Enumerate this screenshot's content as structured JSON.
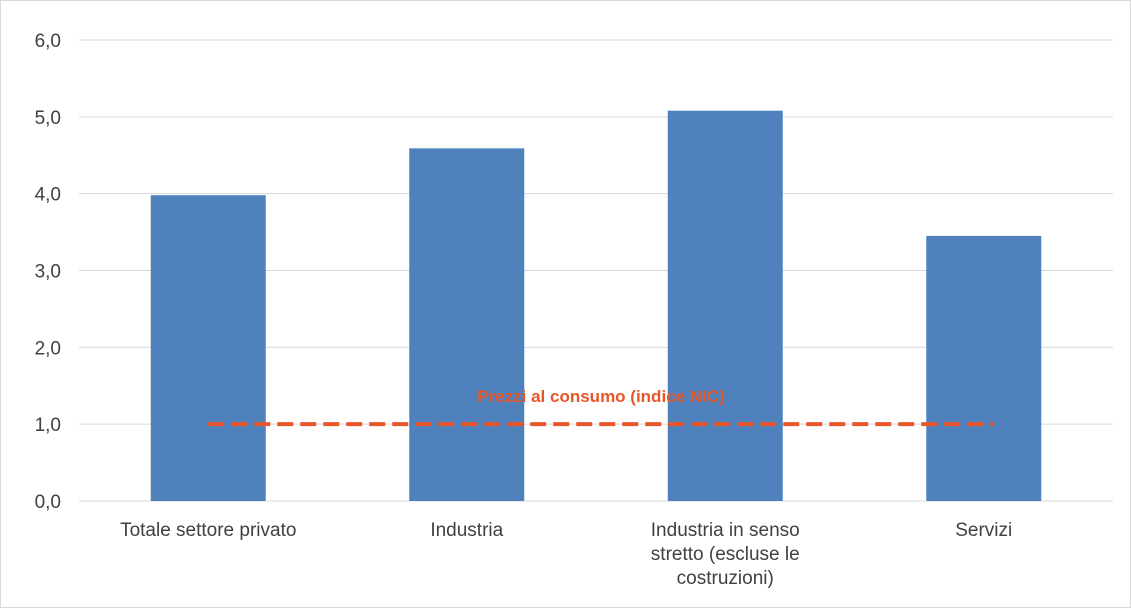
{
  "chart_data": {
    "type": "bar",
    "categories": [
      [
        "Totale settore privato"
      ],
      [
        "Industria"
      ],
      [
        "Industria in senso",
        "stretto (escluse le",
        "costruzioni)"
      ],
      [
        "Servizi"
      ]
    ],
    "values": [
      3.98,
      4.59,
      5.08,
      3.45
    ],
    "ylim": [
      0,
      6
    ],
    "yticks": [
      "0,0",
      "1,0",
      "2,0",
      "3,0",
      "4,0",
      "5,0",
      "6,0"
    ],
    "grid": true,
    "bar_color": "#4f81bd",
    "reference_line": {
      "label": "Prezzi al consumo (indice NIC)",
      "value": 1.0,
      "color": "#e8562a",
      "style": "dashed"
    }
  }
}
